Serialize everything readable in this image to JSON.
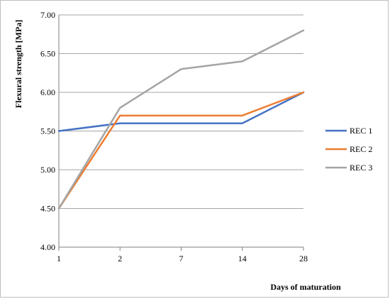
{
  "chart_data": {
    "type": "line",
    "title": "",
    "xlabel": "Days of maturation",
    "ylabel": "Flexural strength [MPa]",
    "x": [
      "1",
      "2",
      "7",
      "14",
      "28"
    ],
    "ylim": [
      4.0,
      7.0
    ],
    "yticks": [
      "4.00",
      "4.50",
      "5.00",
      "5.50",
      "6.00",
      "6.50",
      "7.00"
    ],
    "grid": true,
    "legend_position": "right",
    "series": [
      {
        "name": "REC 1",
        "color": "#4472c4",
        "values": [
          5.5,
          5.6,
          5.6,
          5.6,
          6.0
        ]
      },
      {
        "name": "REC 2",
        "color": "#ed7d31",
        "values": [
          4.5,
          5.7,
          5.7,
          5.7,
          6.0
        ]
      },
      {
        "name": "REC 3",
        "color": "#a5a5a5",
        "values": [
          4.5,
          5.8,
          6.3,
          6.4,
          6.8
        ]
      }
    ]
  }
}
